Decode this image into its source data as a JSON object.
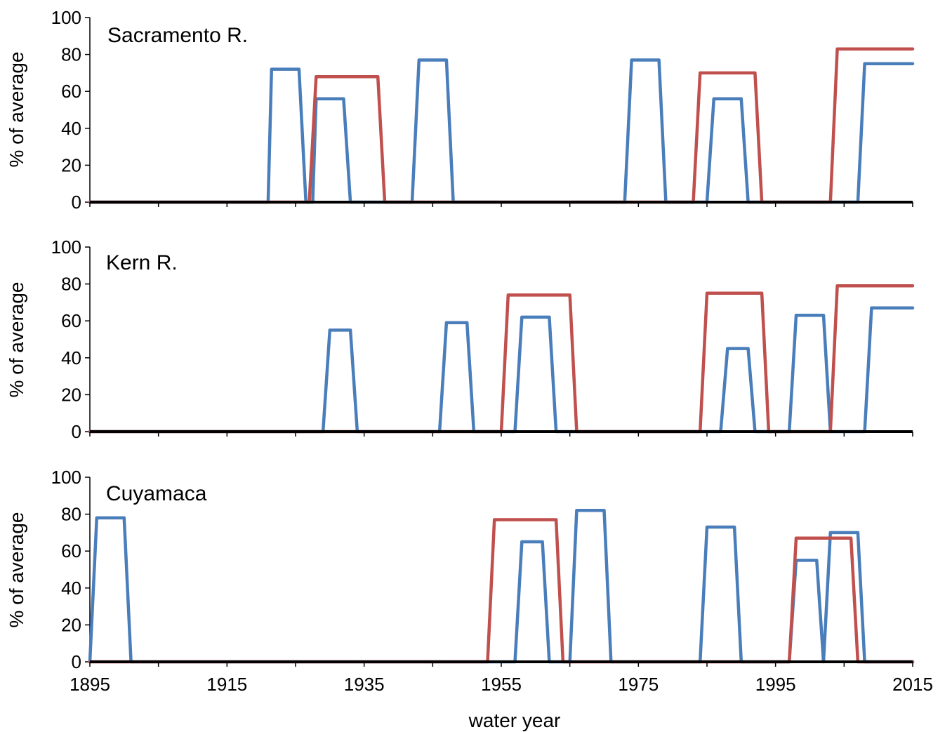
{
  "chart_data": [
    {
      "type": "line",
      "title": "Sacramento R.",
      "ylabel": "% of average",
      "ylim": [
        0,
        100
      ],
      "yticks": [
        "0",
        "20",
        "40",
        "60",
        "80",
        "100"
      ],
      "xlim": [
        1895,
        2015
      ],
      "series": [
        {
          "color": "#4A7EBB",
          "x": [
            1895,
            1921,
            1921.5,
            1925.5,
            1926.5,
            1927.5,
            1928,
            1932,
            1933,
            1942,
            1943,
            1947,
            1948,
            1973,
            1974,
            1978,
            1979,
            1985,
            1986,
            1990,
            1991,
            2007,
            2008,
            2015
          ],
          "y": [
            0,
            0,
            72,
            72,
            0,
            0,
            56,
            56,
            0,
            0,
            77,
            77,
            0,
            0,
            77,
            77,
            0,
            0,
            56,
            56,
            0,
            0,
            75,
            75
          ]
        },
        {
          "color": "#C0504D",
          "x": [
            1895,
            1927,
            1928,
            1937,
            1938,
            1983,
            1984,
            1992,
            1993,
            2003,
            2004,
            2015
          ],
          "y": [
            0,
            0,
            68,
            68,
            0,
            0,
            70,
            70,
            0,
            0,
            83,
            83
          ]
        }
      ]
    },
    {
      "type": "line",
      "title": "Kern R.",
      "ylabel": "% of average",
      "ylim": [
        0,
        100
      ],
      "yticks": [
        "0",
        "20",
        "40",
        "60",
        "80",
        "100"
      ],
      "xlim": [
        1895,
        2015
      ],
      "series": [
        {
          "color": "#4A7EBB",
          "x": [
            1895,
            1929,
            1930,
            1933,
            1934,
            1946,
            1947,
            1950,
            1951,
            1957,
            1958,
            1962,
            1963,
            1987,
            1988,
            1991,
            1992,
            1997,
            1998,
            2002,
            2003,
            2008,
            2009,
            2015
          ],
          "y": [
            0,
            0,
            55,
            55,
            0,
            0,
            59,
            59,
            0,
            0,
            62,
            62,
            0,
            0,
            45,
            45,
            0,
            0,
            63,
            63,
            0,
            0,
            67,
            67
          ]
        },
        {
          "color": "#C0504D",
          "x": [
            1895,
            1955,
            1956,
            1965,
            1966,
            1984,
            1985,
            1993,
            1994,
            2003,
            2004,
            2015
          ],
          "y": [
            0,
            0,
            74,
            74,
            0,
            0,
            75,
            75,
            0,
            0,
            79,
            79
          ]
        }
      ]
    },
    {
      "type": "line",
      "title": "Cuyamaca",
      "ylabel": "% of average",
      "ylim": [
        0,
        100
      ],
      "yticks": [
        "0",
        "20",
        "40",
        "60",
        "80",
        "100"
      ],
      "xlim": [
        1895,
        2015
      ],
      "xticks": [
        "1895",
        "1915",
        "1935",
        "1955",
        "1975",
        "1995",
        "2015"
      ],
      "xlabel": "water year",
      "series": [
        {
          "color": "#4A7EBB",
          "x": [
            1895,
            1896,
            1900,
            1901,
            1957,
            1958,
            1961,
            1962,
            1965,
            1966,
            1970,
            1971,
            1984,
            1985,
            1989,
            1990,
            1997,
            1998,
            2001,
            2002,
            2003,
            2007,
            2008,
            2015
          ],
          "y": [
            0,
            78,
            78,
            0,
            0,
            65,
            65,
            0,
            0,
            82,
            82,
            0,
            0,
            73,
            73,
            0,
            0,
            55,
            55,
            0,
            70,
            70,
            0,
            0
          ]
        },
        {
          "color": "#C0504D",
          "x": [
            1895,
            1953,
            1954,
            1963,
            1964,
            1997,
            1998,
            2006,
            2007,
            2015
          ],
          "y": [
            0,
            0,
            77,
            77,
            0,
            0,
            67,
            67,
            0,
            0
          ]
        }
      ]
    }
  ]
}
